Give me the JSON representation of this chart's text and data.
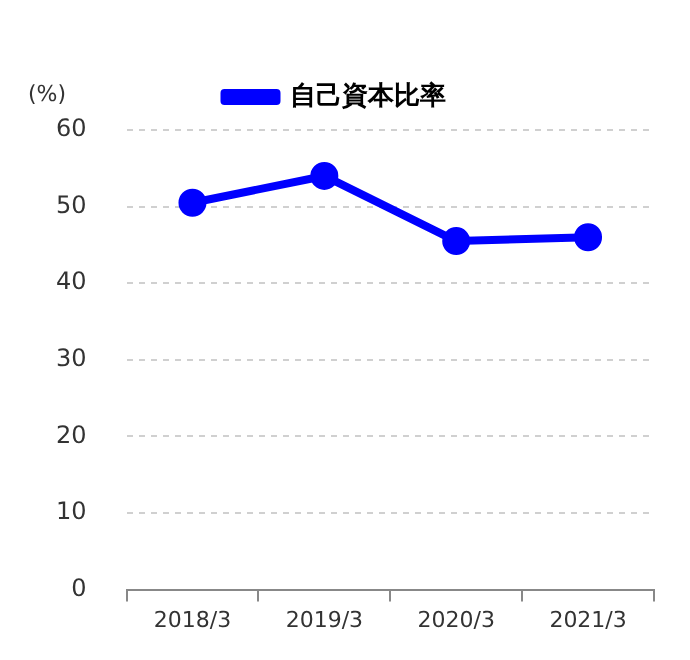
{
  "chart_data": {
    "type": "line",
    "ylabel": "(%)",
    "categories": [
      "2018/3",
      "2019/3",
      "2020/3",
      "2021/3"
    ],
    "series": [
      {
        "name": "自己資本比率",
        "color": "#0000ff",
        "values": [
          50.5,
          54,
          45.5,
          46
        ]
      }
    ],
    "ylim": [
      0,
      60
    ],
    "yticks": [
      0,
      10,
      20,
      30,
      40,
      50,
      60
    ],
    "grid": "y",
    "legend": "top",
    "marker": "circle",
    "line_style": "solid"
  }
}
